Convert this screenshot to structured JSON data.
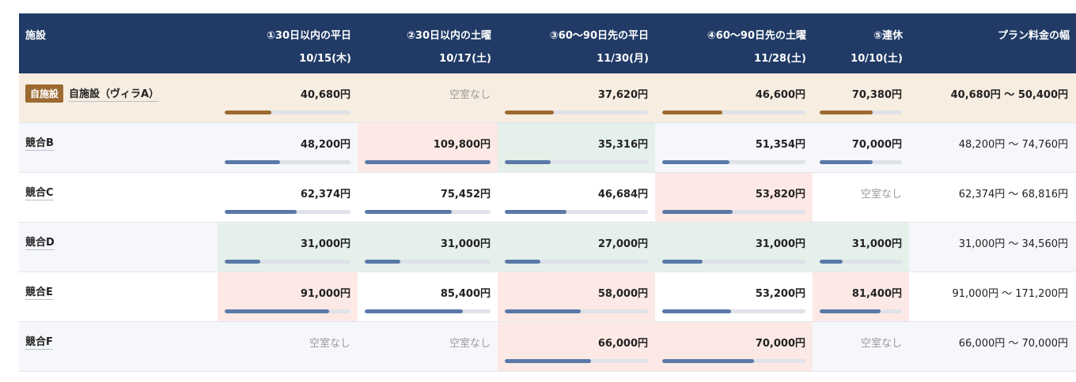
{
  "headers": {
    "facility": "施設",
    "cols": [
      {
        "label": "①30日以内の平日",
        "date": "10/15(木)"
      },
      {
        "label": "②30日以内の土曜",
        "date": "10/17(土)"
      },
      {
        "label": "③60～90日先の平日",
        "date": "11/30(月)"
      },
      {
        "label": "④60～90日先の土曜",
        "date": "11/28(土)"
      },
      {
        "label": "⑤連休",
        "date": "10/10(土)"
      }
    ],
    "range": "プラン料金の幅"
  },
  "rows": [
    {
      "badge": "自施設",
      "name": "自施設（ヴィラA）",
      "own": true,
      "cells": [
        {
          "price": "40,680円",
          "fill": 0.37,
          "state": ""
        },
        {
          "price": "空室なし",
          "fill": null,
          "state": ""
        },
        {
          "price": "37,620円",
          "fill": 0.34,
          "state": ""
        },
        {
          "price": "46,600円",
          "fill": 0.42,
          "state": ""
        },
        {
          "price": "70,380円",
          "fill": 0.64,
          "state": ""
        }
      ],
      "range": "40,680円 ～ 50,400円"
    },
    {
      "name": "競合B",
      "cells": [
        {
          "price": "48,200円",
          "fill": 0.44,
          "state": ""
        },
        {
          "price": "109,800円",
          "fill": 1.0,
          "state": "hi"
        },
        {
          "price": "35,316円",
          "fill": 0.32,
          "state": "lo"
        },
        {
          "price": "51,354円",
          "fill": 0.47,
          "state": ""
        },
        {
          "price": "70,000円",
          "fill": 0.64,
          "state": ""
        }
      ],
      "range": "48,200円 ～ 74,760円"
    },
    {
      "name": "競合C",
      "cells": [
        {
          "price": "62,374円",
          "fill": 0.57,
          "state": ""
        },
        {
          "price": "75,452円",
          "fill": 0.69,
          "state": ""
        },
        {
          "price": "46,684円",
          "fill": 0.43,
          "state": ""
        },
        {
          "price": "53,820円",
          "fill": 0.49,
          "state": "hi"
        },
        {
          "price": "空室なし",
          "fill": null,
          "state": ""
        }
      ],
      "range": "62,374円 ～ 68,816円"
    },
    {
      "name": "競合D",
      "cells": [
        {
          "price": "31,000円",
          "fill": 0.28,
          "state": "lo"
        },
        {
          "price": "31,000円",
          "fill": 0.28,
          "state": "lo"
        },
        {
          "price": "27,000円",
          "fill": 0.25,
          "state": "lo"
        },
        {
          "price": "31,000円",
          "fill": 0.28,
          "state": "lo"
        },
        {
          "price": "31,000円",
          "fill": 0.28,
          "state": "lo"
        }
      ],
      "range": "31,000円 ～ 34,560円"
    },
    {
      "name": "競合E",
      "cells": [
        {
          "price": "91,000円",
          "fill": 0.83,
          "state": "hi"
        },
        {
          "price": "85,400円",
          "fill": 0.78,
          "state": ""
        },
        {
          "price": "58,000円",
          "fill": 0.53,
          "state": "hi"
        },
        {
          "price": "53,200円",
          "fill": 0.48,
          "state": ""
        },
        {
          "price": "81,400円",
          "fill": 0.74,
          "state": "hi"
        }
      ],
      "range": "91,000円 ～ 171,200円"
    },
    {
      "name": "競合F",
      "cells": [
        {
          "price": "空室なし",
          "fill": null,
          "state": ""
        },
        {
          "price": "空室なし",
          "fill": null,
          "state": ""
        },
        {
          "price": "66,000円",
          "fill": 0.6,
          "state": "hi"
        },
        {
          "price": "70,000円",
          "fill": 0.64,
          "state": "hi"
        },
        {
          "price": "空室なし",
          "fill": null,
          "state": ""
        }
      ],
      "range": "66,000円 ～ 70,000円"
    }
  ],
  "colors": {
    "header": "#213b66",
    "own_bar": "#9c6a31",
    "bar": "#5a79a8",
    "high": "#fce9e5",
    "low": "#e5f0ea"
  }
}
